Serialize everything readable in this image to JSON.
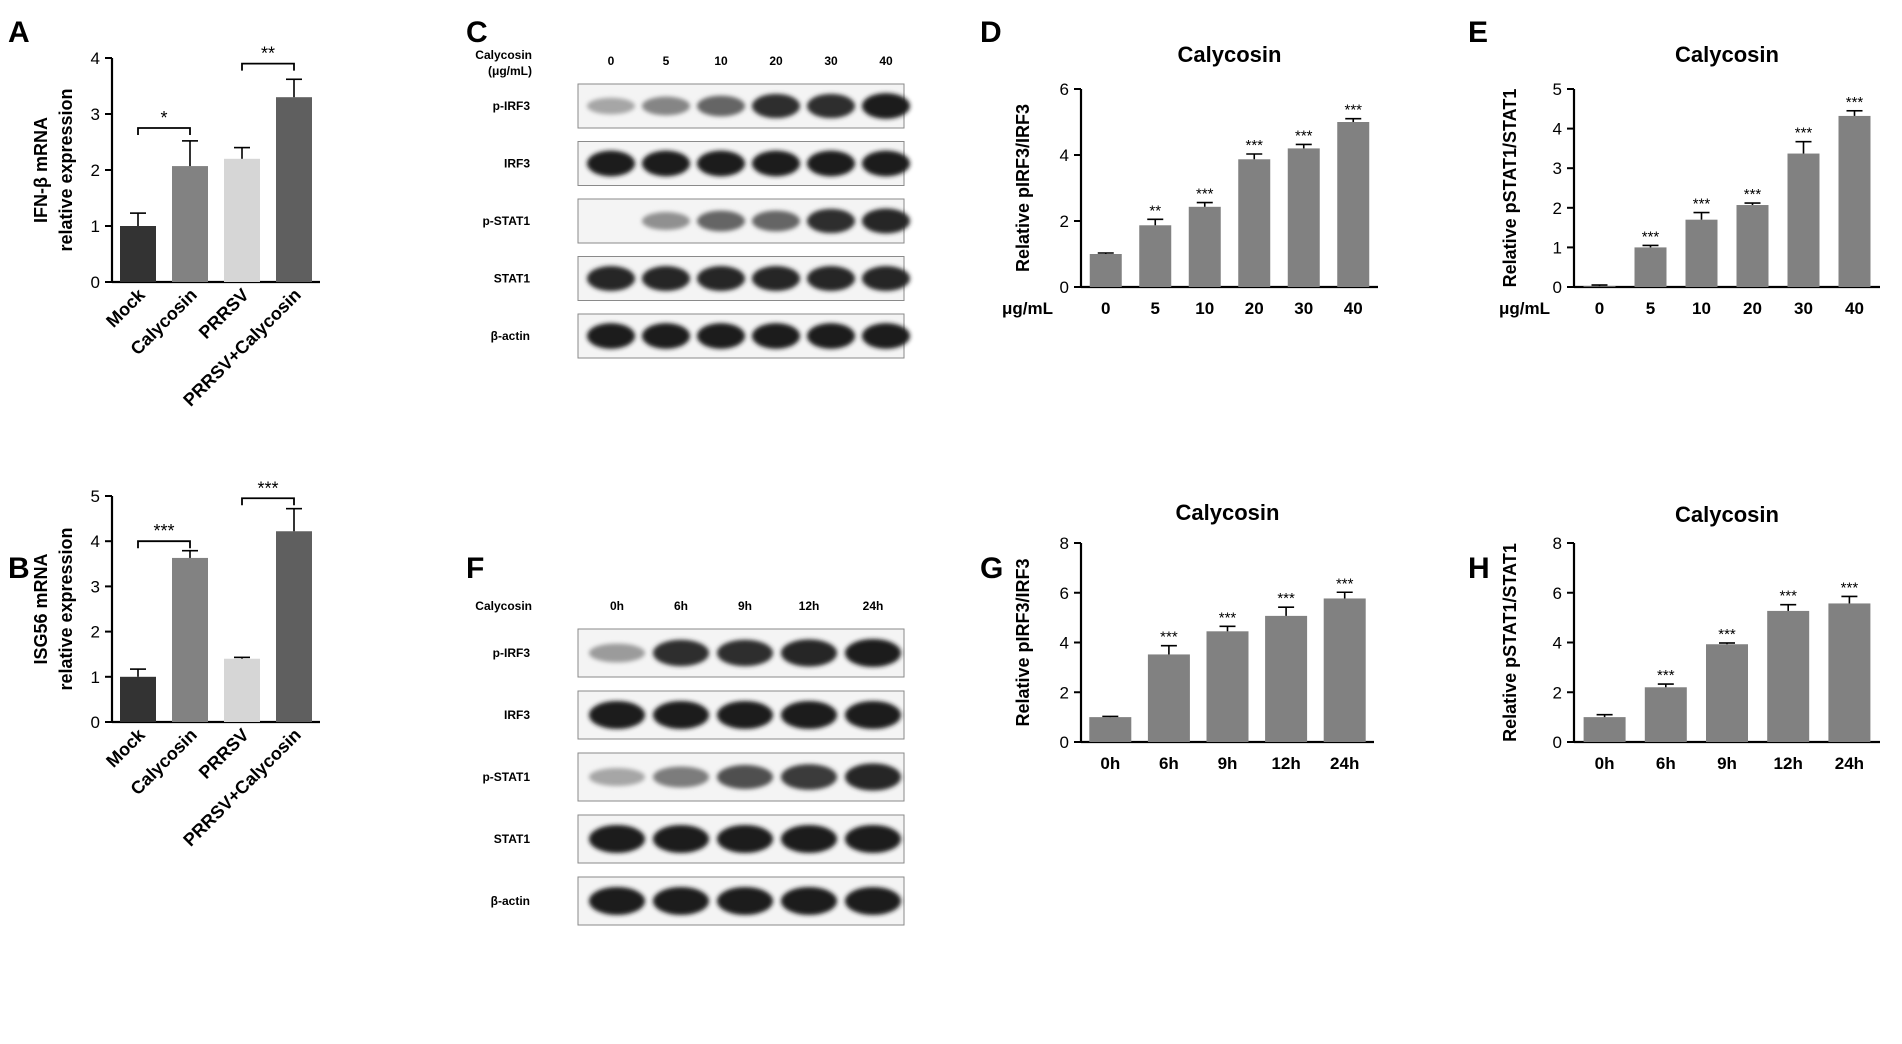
{
  "panel_letters": [
    "A",
    "B",
    "C",
    "D",
    "E",
    "F",
    "G",
    "H"
  ],
  "colors": {
    "mock": "#333333",
    "calycosin": "#828282",
    "prrsv": "#d6d6d6",
    "prrsv_calycosin": "#5f5f5f",
    "bar_gray": "#818181",
    "axis": "#000000"
  },
  "chart_data": [
    {
      "panel": "A",
      "type": "bar",
      "categories": [
        "Mock",
        "Calycosin",
        "PRRSV",
        "PRRSV+Calycosin"
      ],
      "values": [
        1.0,
        2.07,
        2.2,
        3.3
      ],
      "errors": [
        0.23,
        0.45,
        0.2,
        0.32
      ],
      "ylabel": [
        "IFN-β mRNA",
        "relative expression"
      ],
      "ylim": [
        0,
        4
      ],
      "yticks": [
        0,
        1,
        2,
        3,
        4
      ],
      "bar_colors": [
        "#333333",
        "#828282",
        "#d6d6d6",
        "#5f5f5f"
      ],
      "significance": [
        {
          "from": 0,
          "to": 1,
          "label": "*",
          "level": 2.75
        },
        {
          "from": 2,
          "to": 3,
          "label": "**",
          "level": 3.9
        }
      ]
    },
    {
      "panel": "B",
      "type": "bar",
      "categories": [
        "Mock",
        "Calycosin",
        "PRRSV",
        "PRRSV+Calycosin"
      ],
      "values": [
        1.0,
        3.63,
        1.4,
        4.22
      ],
      "errors": [
        0.17,
        0.16,
        0.03,
        0.5
      ],
      "ylabel": [
        "ISG56 mRNA",
        "relative expression"
      ],
      "ylim": [
        0,
        5
      ],
      "yticks": [
        0,
        1,
        2,
        3,
        4,
        5
      ],
      "bar_colors": [
        "#333333",
        "#828282",
        "#d6d6d6",
        "#5f5f5f"
      ],
      "significance": [
        {
          "from": 0,
          "to": 1,
          "label": "***",
          "level": 4.0
        },
        {
          "from": 2,
          "to": 3,
          "label": "***",
          "level": 4.95
        }
      ]
    },
    {
      "panel": "D",
      "type": "bar",
      "title": "Calycosin",
      "xlabel": "μg/mL",
      "categories": [
        "0",
        "5",
        "10",
        "20",
        "30",
        "40"
      ],
      "values": [
        1.0,
        1.87,
        2.43,
        3.87,
        4.2,
        5.0
      ],
      "errors": [
        0.03,
        0.18,
        0.13,
        0.16,
        0.12,
        0.1
      ],
      "annotations": [
        "",
        "**",
        "***",
        "***",
        "***",
        "***"
      ],
      "ylabel": [
        "Relative pIRF3/IRF3"
      ],
      "ylim": [
        0,
        6
      ],
      "yticks": [
        0,
        2,
        4,
        6
      ]
    },
    {
      "panel": "E",
      "type": "bar",
      "title": "Calycosin",
      "xlabel": "μg/mL",
      "categories": [
        "0",
        "5",
        "10",
        "20",
        "30",
        "40"
      ],
      "values": [
        0.02,
        1.0,
        1.7,
        2.07,
        3.37,
        4.32
      ],
      "errors": [
        0.03,
        0.05,
        0.18,
        0.05,
        0.3,
        0.13
      ],
      "annotations": [
        "",
        "***",
        "***",
        "***",
        "***",
        "***"
      ],
      "ylabel": [
        "Relative pSTAT1/STAT1"
      ],
      "ylim": [
        0,
        5
      ],
      "yticks": [
        0,
        1,
        2,
        3,
        4,
        5
      ]
    },
    {
      "panel": "G",
      "type": "bar",
      "title": "Calycosin",
      "categories": [
        "0h",
        "6h",
        "9h",
        "12h",
        "24h"
      ],
      "values": [
        1.0,
        3.52,
        4.45,
        5.07,
        5.77
      ],
      "errors": [
        0.03,
        0.35,
        0.2,
        0.35,
        0.25
      ],
      "annotations": [
        "",
        "***",
        "***",
        "***",
        "***"
      ],
      "ylabel": [
        "Relative pIRF3/IRF3"
      ],
      "ylim": [
        0,
        8
      ],
      "yticks": [
        0,
        2,
        4,
        6,
        8
      ]
    },
    {
      "panel": "H",
      "type": "bar",
      "title": "Calycosin",
      "categories": [
        "0h",
        "6h",
        "9h",
        "12h",
        "24h"
      ],
      "values": [
        1.0,
        2.2,
        3.93,
        5.27,
        5.57
      ],
      "errors": [
        0.1,
        0.13,
        0.05,
        0.25,
        0.28
      ],
      "annotations": [
        "",
        "***",
        "***",
        "***",
        "***"
      ],
      "ylabel": [
        "Relative pSTAT1/STAT1"
      ],
      "ylim": [
        0,
        8
      ],
      "yticks": [
        0,
        2,
        4,
        6,
        8
      ]
    }
  ],
  "blots": [
    {
      "panel": "C",
      "treatment_label": [
        "Calycosin",
        "(μg/mL)"
      ],
      "lanes": [
        "0",
        "5",
        "10",
        "20",
        "30",
        "40"
      ],
      "rows": [
        {
          "label": "p-IRF3",
          "intensities": [
            0.3,
            0.45,
            0.6,
            0.85,
            0.85,
            0.95
          ]
        },
        {
          "label": "IRF3",
          "intensities": [
            0.95,
            0.95,
            0.95,
            0.95,
            0.95,
            0.95
          ]
        },
        {
          "label": "p-STAT1",
          "intensities": [
            0.0,
            0.4,
            0.6,
            0.6,
            0.85,
            0.9
          ]
        },
        {
          "label": "STAT1",
          "intensities": [
            0.9,
            0.9,
            0.9,
            0.9,
            0.9,
            0.9
          ]
        },
        {
          "label": "β-actin",
          "intensities": [
            0.95,
            0.95,
            0.95,
            0.95,
            0.95,
            0.95
          ]
        }
      ]
    },
    {
      "panel": "F",
      "treatment_label": [
        "Calycosin"
      ],
      "lanes": [
        "0h",
        "6h",
        "9h",
        "12h",
        "24h"
      ],
      "rows": [
        {
          "label": "p-IRF3",
          "intensities": [
            0.35,
            0.85,
            0.85,
            0.9,
            0.95
          ]
        },
        {
          "label": "IRF3",
          "intensities": [
            0.95,
            0.95,
            0.95,
            0.95,
            0.95
          ]
        },
        {
          "label": "p-STAT1",
          "intensities": [
            0.3,
            0.5,
            0.7,
            0.8,
            0.9
          ]
        },
        {
          "label": "STAT1",
          "intensities": [
            0.95,
            0.95,
            0.95,
            0.95,
            0.95
          ]
        },
        {
          "label": "β-actin",
          "intensities": [
            0.95,
            0.95,
            0.95,
            0.95,
            0.95
          ]
        }
      ]
    }
  ]
}
